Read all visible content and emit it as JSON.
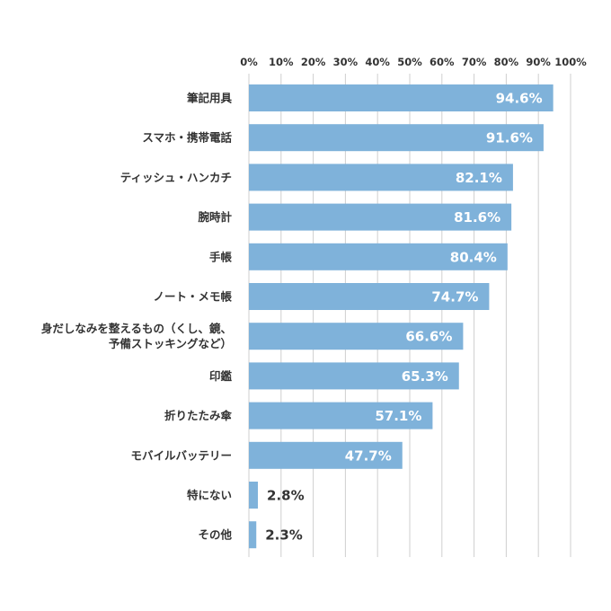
{
  "chart_data": {
    "type": "bar",
    "orientation": "horizontal",
    "categories": [
      [
        "筆記用具"
      ],
      [
        "スマホ・携帯電話"
      ],
      [
        "ティッシュ・ハンカチ"
      ],
      [
        "腕時計"
      ],
      [
        "手帳"
      ],
      [
        "ノート・メモ帳"
      ],
      [
        "身だしなみを整えるもの（くし、鏡、",
        "予備ストッキングなど）"
      ],
      [
        "印鑑"
      ],
      [
        "折りたたみ傘"
      ],
      [
        "モバイルバッテリー"
      ],
      [
        "特にない"
      ],
      [
        "その他"
      ]
    ],
    "values": [
      94.6,
      91.6,
      82.1,
      81.6,
      80.4,
      74.7,
      66.6,
      65.3,
      57.1,
      47.7,
      2.8,
      2.3
    ],
    "value_labels": [
      "94.6%",
      "91.6%",
      "82.1%",
      "81.6%",
      "80.4%",
      "74.7%",
      "66.6%",
      "65.3%",
      "57.1%",
      "47.7%",
      "2.8%",
      "2.3%"
    ],
    "x_ticks": [
      "0%",
      "10%",
      "20%",
      "30%",
      "40%",
      "50%",
      "60%",
      "70%",
      "80%",
      "90%",
      "100%"
    ],
    "xlim": [
      0,
      100
    ],
    "axis_position": "top",
    "grid": true,
    "colors": {
      "bar": "#7fb2da",
      "grid": "#cfcfcf",
      "label_inside": "#ffffff",
      "label_outside": "#333333"
    }
  }
}
